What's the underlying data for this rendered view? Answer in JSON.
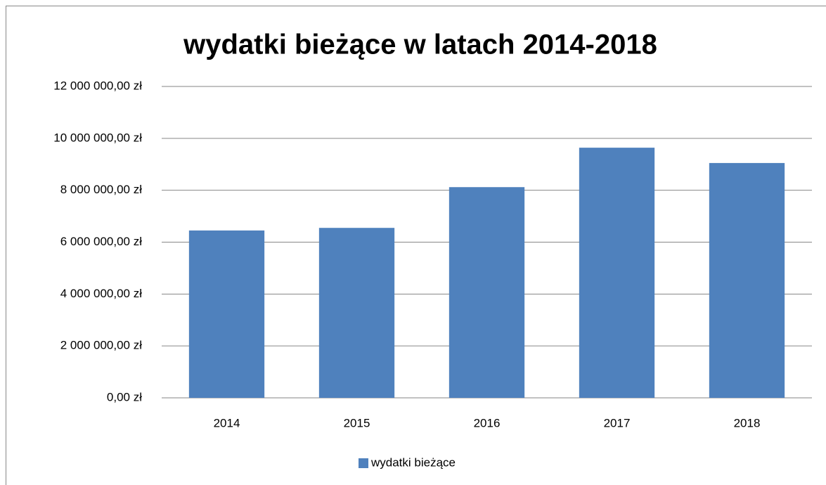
{
  "chart_data": {
    "type": "bar",
    "title": "wydatki bieżące w latach 2014-2018",
    "categories": [
      "2014",
      "2015",
      "2016",
      "2017",
      "2018"
    ],
    "series": [
      {
        "name": "wydatki bieżące",
        "color": "#4f81bd",
        "values": [
          6450000,
          6550000,
          8120000,
          9640000,
          9050000
        ]
      }
    ],
    "ylim": [
      0,
      12000000
    ],
    "yticks": [
      {
        "value": 0,
        "label": "0,00 zł"
      },
      {
        "value": 2000000,
        "label": "2 000 000,00 zł"
      },
      {
        "value": 4000000,
        "label": "4 000 000,00 zł"
      },
      {
        "value": 6000000,
        "label": "6 000 000,00 zł"
      },
      {
        "value": 8000000,
        "label": "8 000 000,00 zł"
      },
      {
        "value": 10000000,
        "label": "10 000 000,00 zł"
      },
      {
        "value": 12000000,
        "label": "12 000 000,00 zł"
      }
    ],
    "grid": true,
    "legend": "bottom"
  }
}
